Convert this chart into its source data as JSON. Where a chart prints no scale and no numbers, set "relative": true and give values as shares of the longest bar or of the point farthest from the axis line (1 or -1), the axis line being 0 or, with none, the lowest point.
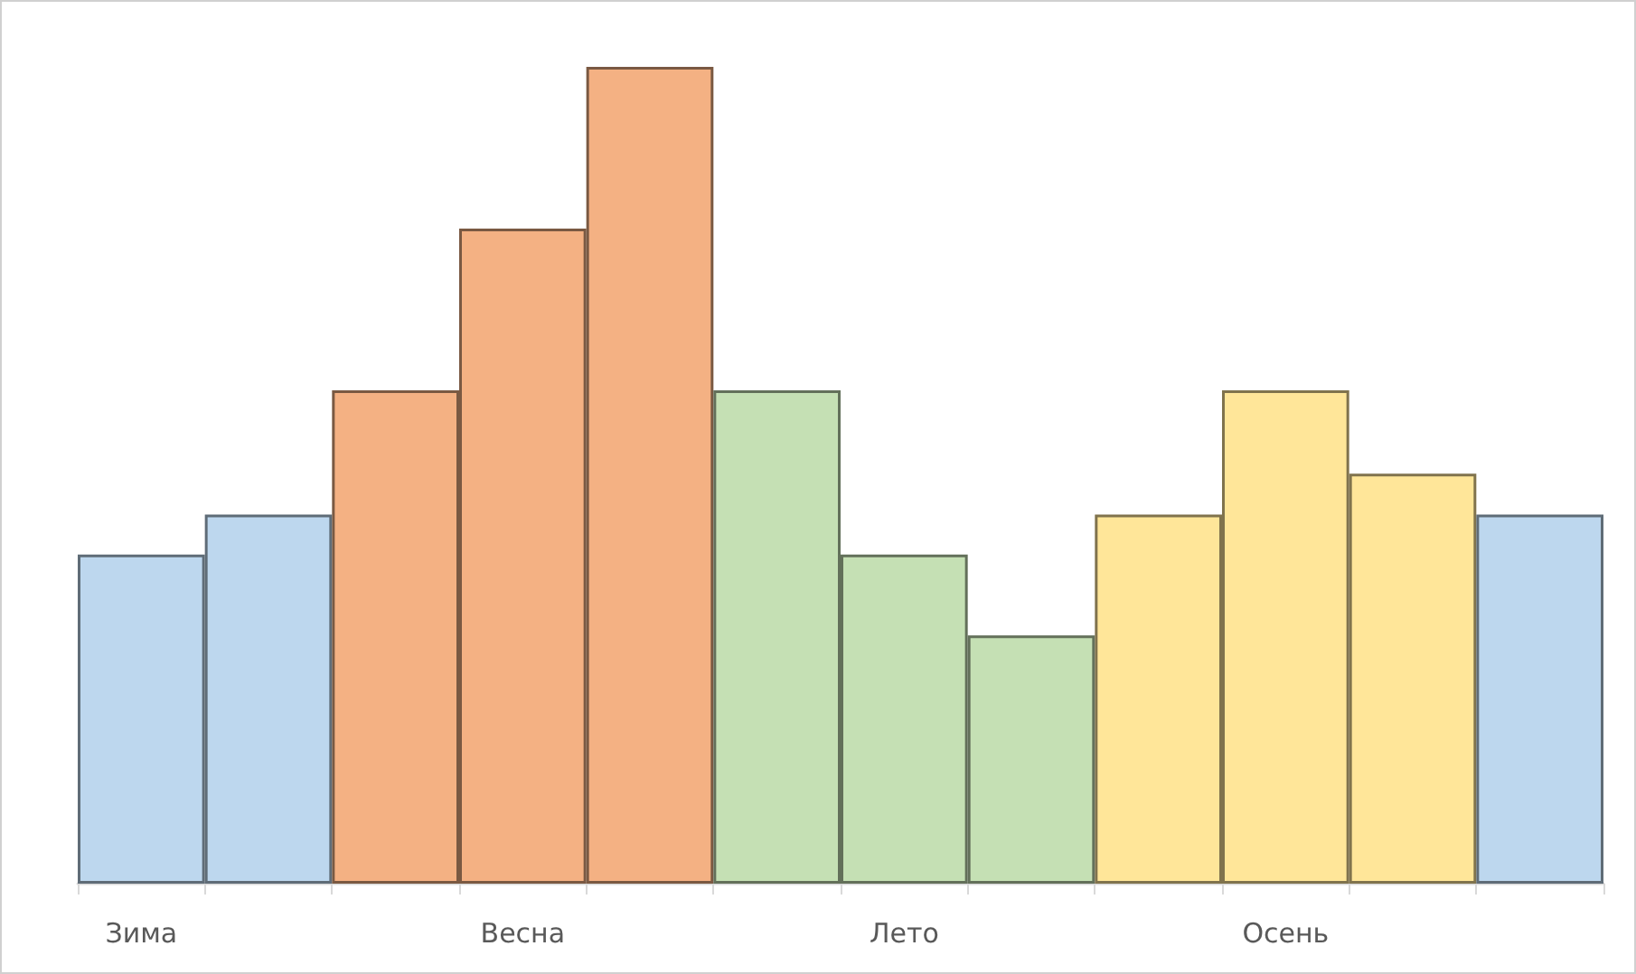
{
  "chart_data": {
    "type": "bar",
    "relative": true,
    "categories": [
      "Зима",
      null,
      null,
      "Весна",
      null,
      null,
      "Лето",
      null,
      null,
      "Осень",
      null,
      null
    ],
    "values": [
      0.403,
      0.452,
      0.604,
      0.802,
      1,
      0.604,
      0.403,
      0.304,
      0.452,
      0.604,
      0.502,
      0.452
    ],
    "colors": [
      "#bdd7ee",
      "#bdd7ee",
      "#f4b183",
      "#f4b183",
      "#f4b183",
      "#c5e0b4",
      "#c5e0b4",
      "#c5e0b4",
      "#ffe699",
      "#ffe699",
      "#ffe699",
      "#bdd7ee"
    ],
    "data_labels": false
  }
}
